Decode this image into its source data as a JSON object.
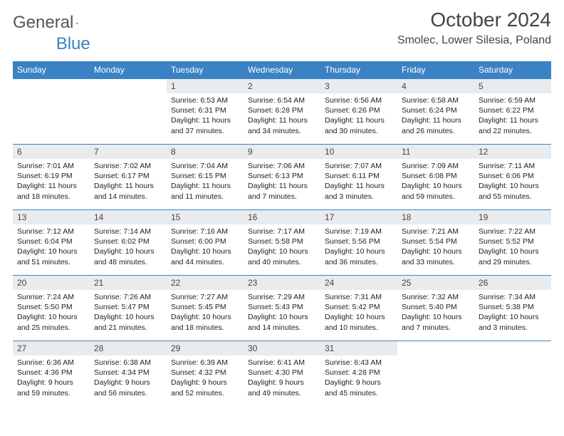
{
  "brand": {
    "part1": "General",
    "part2": "Blue"
  },
  "title": "October 2024",
  "location": "Smolec, Lower Silesia, Poland",
  "colors": {
    "header_bg": "#3b82c4",
    "header_text": "#ffffff",
    "daynum_bg": "#e8ecef",
    "rule": "#3b82c4",
    "body_text": "#222222",
    "title_text": "#444444"
  },
  "dayNames": [
    "Sunday",
    "Monday",
    "Tuesday",
    "Wednesday",
    "Thursday",
    "Friday",
    "Saturday"
  ],
  "weeks": [
    [
      {
        "n": "",
        "sr": "",
        "ss": "",
        "dl": "",
        "empty": true
      },
      {
        "n": "",
        "sr": "",
        "ss": "",
        "dl": "",
        "empty": true
      },
      {
        "n": "1",
        "sr": "Sunrise: 6:53 AM",
        "ss": "Sunset: 6:31 PM",
        "dl": "Daylight: 11 hours and 37 minutes."
      },
      {
        "n": "2",
        "sr": "Sunrise: 6:54 AM",
        "ss": "Sunset: 6:28 PM",
        "dl": "Daylight: 11 hours and 34 minutes."
      },
      {
        "n": "3",
        "sr": "Sunrise: 6:56 AM",
        "ss": "Sunset: 6:26 PM",
        "dl": "Daylight: 11 hours and 30 minutes."
      },
      {
        "n": "4",
        "sr": "Sunrise: 6:58 AM",
        "ss": "Sunset: 6:24 PM",
        "dl": "Daylight: 11 hours and 26 minutes."
      },
      {
        "n": "5",
        "sr": "Sunrise: 6:59 AM",
        "ss": "Sunset: 6:22 PM",
        "dl": "Daylight: 11 hours and 22 minutes."
      }
    ],
    [
      {
        "n": "6",
        "sr": "Sunrise: 7:01 AM",
        "ss": "Sunset: 6:19 PM",
        "dl": "Daylight: 11 hours and 18 minutes."
      },
      {
        "n": "7",
        "sr": "Sunrise: 7:02 AM",
        "ss": "Sunset: 6:17 PM",
        "dl": "Daylight: 11 hours and 14 minutes."
      },
      {
        "n": "8",
        "sr": "Sunrise: 7:04 AM",
        "ss": "Sunset: 6:15 PM",
        "dl": "Daylight: 11 hours and 11 minutes."
      },
      {
        "n": "9",
        "sr": "Sunrise: 7:06 AM",
        "ss": "Sunset: 6:13 PM",
        "dl": "Daylight: 11 hours and 7 minutes."
      },
      {
        "n": "10",
        "sr": "Sunrise: 7:07 AM",
        "ss": "Sunset: 6:11 PM",
        "dl": "Daylight: 11 hours and 3 minutes."
      },
      {
        "n": "11",
        "sr": "Sunrise: 7:09 AM",
        "ss": "Sunset: 6:08 PM",
        "dl": "Daylight: 10 hours and 59 minutes."
      },
      {
        "n": "12",
        "sr": "Sunrise: 7:11 AM",
        "ss": "Sunset: 6:06 PM",
        "dl": "Daylight: 10 hours and 55 minutes."
      }
    ],
    [
      {
        "n": "13",
        "sr": "Sunrise: 7:12 AM",
        "ss": "Sunset: 6:04 PM",
        "dl": "Daylight: 10 hours and 51 minutes."
      },
      {
        "n": "14",
        "sr": "Sunrise: 7:14 AM",
        "ss": "Sunset: 6:02 PM",
        "dl": "Daylight: 10 hours and 48 minutes."
      },
      {
        "n": "15",
        "sr": "Sunrise: 7:16 AM",
        "ss": "Sunset: 6:00 PM",
        "dl": "Daylight: 10 hours and 44 minutes."
      },
      {
        "n": "16",
        "sr": "Sunrise: 7:17 AM",
        "ss": "Sunset: 5:58 PM",
        "dl": "Daylight: 10 hours and 40 minutes."
      },
      {
        "n": "17",
        "sr": "Sunrise: 7:19 AM",
        "ss": "Sunset: 5:56 PM",
        "dl": "Daylight: 10 hours and 36 minutes."
      },
      {
        "n": "18",
        "sr": "Sunrise: 7:21 AM",
        "ss": "Sunset: 5:54 PM",
        "dl": "Daylight: 10 hours and 33 minutes."
      },
      {
        "n": "19",
        "sr": "Sunrise: 7:22 AM",
        "ss": "Sunset: 5:52 PM",
        "dl": "Daylight: 10 hours and 29 minutes."
      }
    ],
    [
      {
        "n": "20",
        "sr": "Sunrise: 7:24 AM",
        "ss": "Sunset: 5:50 PM",
        "dl": "Daylight: 10 hours and 25 minutes."
      },
      {
        "n": "21",
        "sr": "Sunrise: 7:26 AM",
        "ss": "Sunset: 5:47 PM",
        "dl": "Daylight: 10 hours and 21 minutes."
      },
      {
        "n": "22",
        "sr": "Sunrise: 7:27 AM",
        "ss": "Sunset: 5:45 PM",
        "dl": "Daylight: 10 hours and 18 minutes."
      },
      {
        "n": "23",
        "sr": "Sunrise: 7:29 AM",
        "ss": "Sunset: 5:43 PM",
        "dl": "Daylight: 10 hours and 14 minutes."
      },
      {
        "n": "24",
        "sr": "Sunrise: 7:31 AM",
        "ss": "Sunset: 5:42 PM",
        "dl": "Daylight: 10 hours and 10 minutes."
      },
      {
        "n": "25",
        "sr": "Sunrise: 7:32 AM",
        "ss": "Sunset: 5:40 PM",
        "dl": "Daylight: 10 hours and 7 minutes."
      },
      {
        "n": "26",
        "sr": "Sunrise: 7:34 AM",
        "ss": "Sunset: 5:38 PM",
        "dl": "Daylight: 10 hours and 3 minutes."
      }
    ],
    [
      {
        "n": "27",
        "sr": "Sunrise: 6:36 AM",
        "ss": "Sunset: 4:36 PM",
        "dl": "Daylight: 9 hours and 59 minutes."
      },
      {
        "n": "28",
        "sr": "Sunrise: 6:38 AM",
        "ss": "Sunset: 4:34 PM",
        "dl": "Daylight: 9 hours and 56 minutes."
      },
      {
        "n": "29",
        "sr": "Sunrise: 6:39 AM",
        "ss": "Sunset: 4:32 PM",
        "dl": "Daylight: 9 hours and 52 minutes."
      },
      {
        "n": "30",
        "sr": "Sunrise: 6:41 AM",
        "ss": "Sunset: 4:30 PM",
        "dl": "Daylight: 9 hours and 49 minutes."
      },
      {
        "n": "31",
        "sr": "Sunrise: 6:43 AM",
        "ss": "Sunset: 4:28 PM",
        "dl": "Daylight: 9 hours and 45 minutes."
      },
      {
        "n": "",
        "sr": "",
        "ss": "",
        "dl": "",
        "empty": true
      },
      {
        "n": "",
        "sr": "",
        "ss": "",
        "dl": "",
        "empty": true
      }
    ]
  ]
}
